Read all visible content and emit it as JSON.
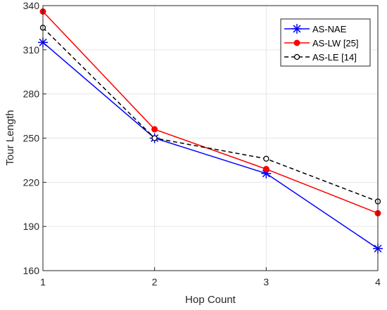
{
  "chart_data": {
    "type": "line",
    "title": "",
    "xlabel": "Hop Count",
    "ylabel": "Tour Length",
    "x": [
      1,
      2,
      3,
      4
    ],
    "xlim": [
      1,
      4
    ],
    "ylim": [
      160,
      340
    ],
    "xticks": [
      "1",
      "2",
      "3",
      "4"
    ],
    "yticks": [
      "160",
      "190",
      "220",
      "250",
      "280",
      "310",
      "340"
    ],
    "grid": true,
    "legend_position": "top-right",
    "series": [
      {
        "name": "AS-NAE",
        "values": [
          315,
          250,
          226,
          175
        ],
        "color": "#0000ff",
        "marker": "asterisk",
        "line_style": "solid"
      },
      {
        "name": "AS-LW [25]",
        "values": [
          336,
          256,
          229,
          199
        ],
        "color": "#ff0000",
        "marker": "filled-circle",
        "line_style": "solid"
      },
      {
        "name": "AS-LE [14]",
        "values": [
          325,
          250,
          236,
          207
        ],
        "color": "#000000",
        "marker": "open-circle",
        "line_style": "dashed"
      }
    ]
  }
}
